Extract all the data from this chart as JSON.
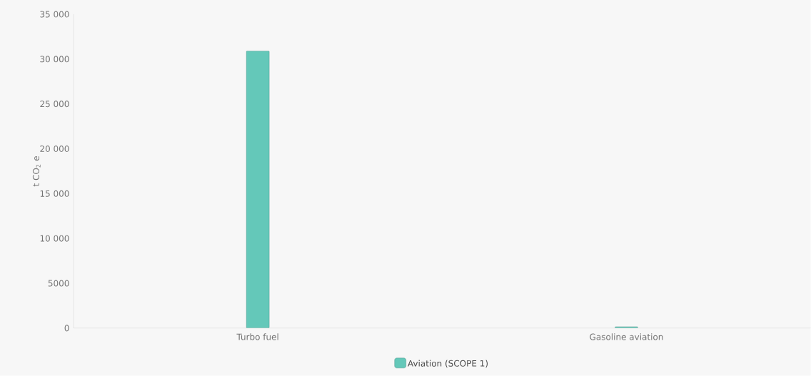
{
  "chart_data": {
    "type": "bar",
    "ylabel": "t CO$_{2}$ e",
    "categories": [
      "Turbo fuel",
      "Gasoline aviation"
    ],
    "series": [
      {
        "name": "Aviation (SCOPE 1)",
        "color": "#64c8b9",
        "values": [
          30900,
          150
        ]
      }
    ],
    "ylim": [
      0,
      35000
    ],
    "yticks": [
      0,
      5000,
      {
        "value": 10000,
        "label": "10 000"
      },
      {
        "value": 15000,
        "label": "15 000"
      },
      {
        "value": 20000,
        "label": "20 000"
      },
      {
        "value": 25000,
        "label": "25 000"
      },
      {
        "value": 30000,
        "label": "30 000"
      },
      {
        "value": 35000,
        "label": "35 000"
      }
    ],
    "grid": false,
    "legend": "bottom"
  }
}
